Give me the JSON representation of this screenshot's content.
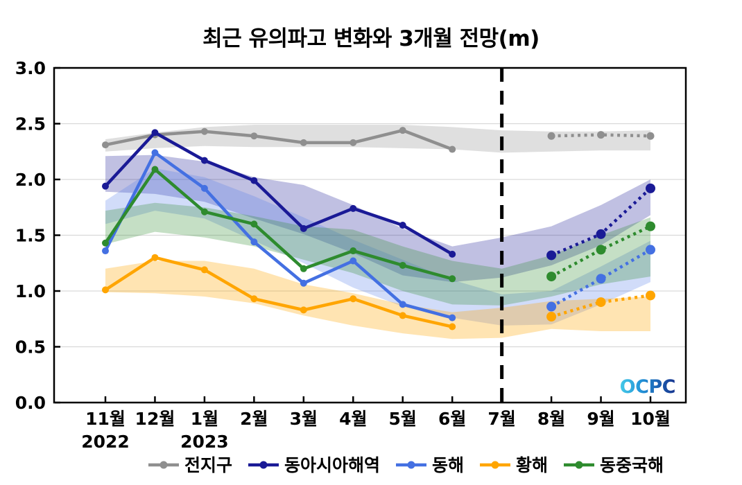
{
  "title": "최근 유의파고 변화와 3개월 전망(m)",
  "logo_text": "OCPC",
  "logo_gradient": [
    "#45cbe8",
    "#2293d8",
    "#16338e"
  ],
  "frame_color": "#000000",
  "grid_color": "#d9d9d9",
  "divider": {
    "color": "#000000",
    "dash": "20 13",
    "width": 5
  },
  "chart_data": {
    "type": "line",
    "title": "최근 유의파고 변화와 3개월 전망(m)",
    "categories": [
      "11월",
      "12월",
      "1월",
      "2월",
      "3월",
      "4월",
      "5월",
      "6월",
      "7월",
      "8월",
      "9월",
      "10월"
    ],
    "x_year_labels": [
      "2022",
      "",
      "2023",
      "",
      "",
      "",
      "",
      "",
      "",
      "",
      "",
      ""
    ],
    "y_ticks": [
      "0.0",
      "0.5",
      "1.0",
      "1.5",
      "2.0",
      "2.5",
      "3.0"
    ],
    "ylim": [
      0,
      3
    ],
    "grid": "horizontal",
    "legend_position": "bottom-center",
    "line_width": 4.5,
    "forecast_dash": "4 5.5",
    "divider_index": 8,
    "forecast_start_index": 9,
    "series": [
      {
        "key": "global",
        "name": "전지구",
        "color": "#8f8f8f",
        "band_color": "rgba(150,150,150,0.30)",
        "marker_radius": 5,
        "forecast_marker_radius": 5.5,
        "values": [
          2.31,
          2.4,
          2.43,
          2.39,
          2.33,
          2.33,
          2.44,
          2.27,
          null,
          2.39,
          2.4,
          2.39
        ],
        "band_upper": [
          2.36,
          2.42,
          2.47,
          2.49,
          2.49,
          2.49,
          2.49,
          2.47,
          2.44,
          2.43,
          2.43,
          2.44
        ],
        "band_lower": [
          2.25,
          2.28,
          2.3,
          2.29,
          2.29,
          2.29,
          2.28,
          2.27,
          2.24,
          2.25,
          2.26,
          2.26
        ]
      },
      {
        "key": "east-asia-sea",
        "name": "동아시아해역",
        "color": "#1a1a96",
        "band_color": "rgba(30,30,150,0.28)",
        "marker_radius": 5,
        "forecast_marker_radius": 7,
        "values": [
          1.94,
          2.42,
          2.17,
          1.99,
          1.56,
          1.74,
          1.59,
          1.33,
          null,
          1.32,
          1.51,
          1.92
        ],
        "band_upper": [
          2.21,
          2.22,
          2.16,
          2.02,
          1.95,
          1.77,
          1.56,
          1.4,
          1.48,
          1.58,
          1.77,
          2.0
        ],
        "band_lower": [
          1.89,
          1.87,
          1.8,
          1.65,
          1.51,
          1.34,
          1.14,
          1.08,
          1.12,
          1.23,
          1.41,
          1.68
        ]
      },
      {
        "key": "east-sea",
        "name": "동해",
        "color": "#4470e2",
        "band_color": "rgba(90,130,235,0.28)",
        "marker_radius": 5,
        "forecast_marker_radius": 7,
        "values": [
          1.36,
          2.24,
          1.92,
          1.44,
          1.07,
          1.27,
          0.88,
          0.76,
          null,
          0.86,
          1.11,
          1.37
        ],
        "band_upper": [
          1.81,
          2.1,
          2.02,
          1.85,
          1.66,
          1.46,
          1.28,
          1.1,
          0.97,
          1.0,
          1.22,
          1.45
        ],
        "band_lower": [
          1.6,
          1.72,
          1.65,
          1.45,
          1.25,
          1.03,
          0.86,
          0.76,
          0.69,
          0.7,
          0.88,
          1.08
        ]
      },
      {
        "key": "yellow-sea",
        "name": "황해",
        "color": "#ffa500",
        "band_color": "rgba(255,165,0,0.30)",
        "marker_radius": 5,
        "forecast_marker_radius": 7,
        "values": [
          1.01,
          1.3,
          1.19,
          0.93,
          0.83,
          0.93,
          0.78,
          0.68,
          null,
          0.77,
          0.9,
          0.96
        ],
        "band_upper": [
          1.2,
          1.27,
          1.27,
          1.2,
          1.06,
          0.98,
          0.88,
          0.81,
          0.85,
          0.91,
          0.93,
          0.95
        ],
        "band_lower": [
          0.99,
          0.98,
          0.95,
          0.89,
          0.78,
          0.69,
          0.62,
          0.57,
          0.58,
          0.66,
          0.64,
          0.64
        ]
      },
      {
        "key": "east-china-sea",
        "name": "동중국해",
        "color": "#2e8b2e",
        "band_color": "rgba(46,139,46,0.28)",
        "marker_radius": 5,
        "forecast_marker_radius": 7,
        "values": [
          1.43,
          2.09,
          1.71,
          1.6,
          1.2,
          1.36,
          1.23,
          1.11,
          null,
          1.13,
          1.37,
          1.58
        ],
        "band_upper": [
          1.72,
          1.79,
          1.75,
          1.67,
          1.58,
          1.55,
          1.4,
          1.27,
          1.2,
          1.32,
          1.5,
          1.66
        ],
        "band_lower": [
          1.42,
          1.53,
          1.48,
          1.4,
          1.28,
          1.16,
          1.0,
          0.88,
          0.87,
          0.95,
          1.06,
          1.13
        ]
      }
    ]
  }
}
